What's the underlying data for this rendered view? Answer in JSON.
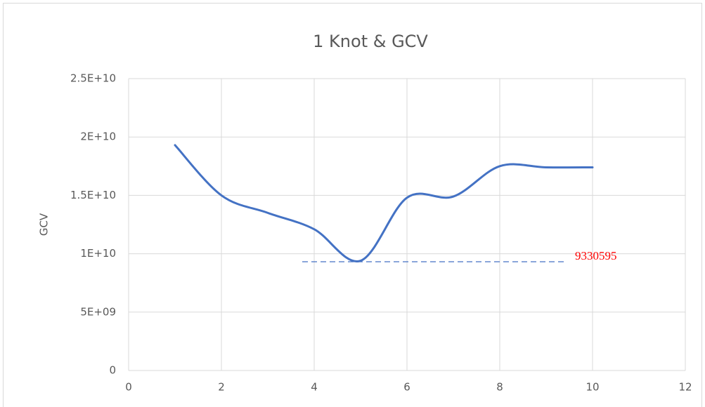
{
  "chart_data": {
    "type": "line",
    "title": "1 Knot & GCV",
    "ylabel": "GCV",
    "x": [
      1,
      2,
      3,
      4,
      5,
      6,
      7,
      8,
      9,
      10
    ],
    "series": [
      {
        "color": "#4472c4",
        "values": [
          19300000000,
          15000000000,
          13500000000,
          12100000000,
          9400000000,
          14800000000,
          14900000000,
          17500000000,
          17400000000,
          17400000000
        ]
      }
    ],
    "xlim": [
      0,
      12
    ],
    "xticks": [
      0,
      2,
      4,
      6,
      8,
      10,
      12
    ],
    "ylim": [
      0,
      25000000000
    ],
    "yticks": [
      0,
      {
        "value": 5000000000,
        "label": "5E+09"
      },
      {
        "value": 10000000000,
        "label": "1E+10"
      },
      {
        "value": 15000000000,
        "label": "1.5E+10"
      },
      {
        "value": 20000000000,
        "label": "2E+10"
      },
      {
        "value": 25000000000,
        "label": "2.5E+10"
      }
    ],
    "grid": true,
    "annotation": {
      "text": "9330595",
      "color": "#ff0000"
    }
  }
}
